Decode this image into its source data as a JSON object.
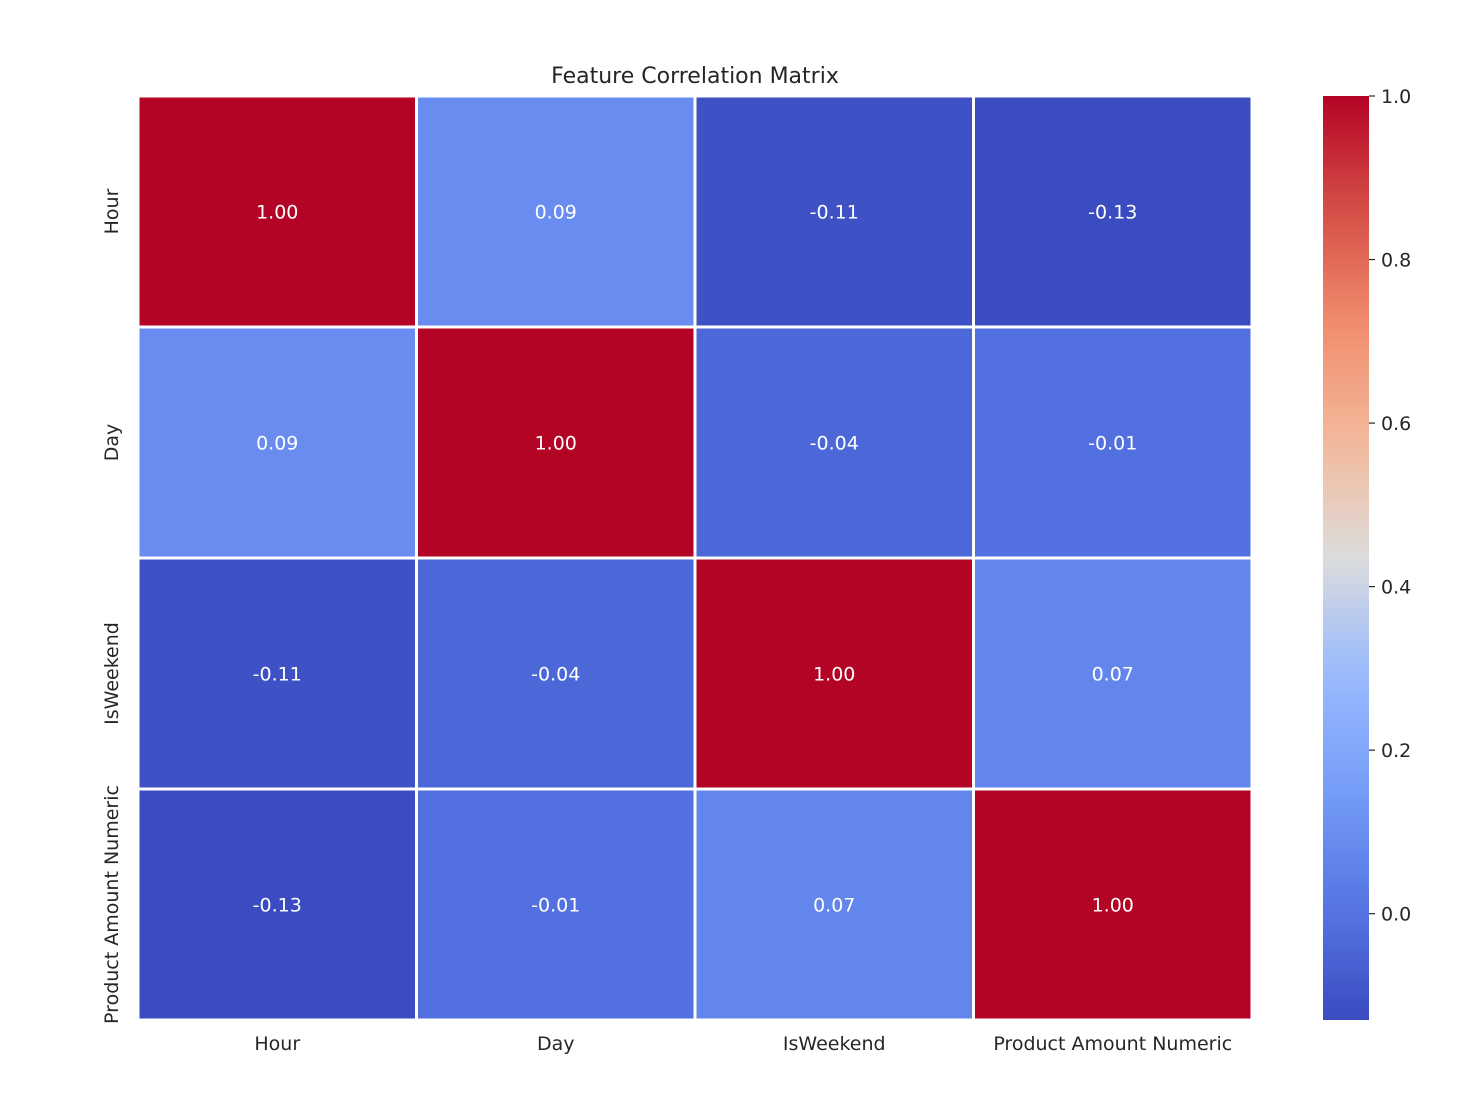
{
  "chart_data": {
    "type": "heatmap",
    "title": "Feature Correlation Matrix",
    "xlabel": "",
    "ylabel": "",
    "row_labels": [
      "Hour",
      "Day",
      "IsWeekend",
      "Product Amount Numeric"
    ],
    "col_labels": [
      "Hour",
      "Day",
      "IsWeekend",
      "Product Amount Numeric"
    ],
    "values": [
      [
        1.0,
        0.09,
        -0.11,
        -0.13
      ],
      [
        0.09,
        1.0,
        -0.04,
        -0.01
      ],
      [
        -0.11,
        -0.04,
        1.0,
        0.07
      ],
      [
        -0.13,
        -0.01,
        0.07,
        1.0
      ]
    ],
    "annotations": [
      [
        "1.00",
        "0.09",
        "-0.11",
        "-0.13"
      ],
      [
        "0.09",
        "1.00",
        "-0.04",
        "-0.01"
      ],
      [
        "-0.11",
        "-0.04",
        "1.00",
        "0.07"
      ],
      [
        "-0.13",
        "-0.01",
        "0.07",
        "1.00"
      ]
    ],
    "colormap": "coolwarm",
    "colorbar": {
      "range": [
        -0.13,
        1.0
      ],
      "ticks": [
        0.0,
        0.2,
        0.4,
        0.6,
        0.8,
        1.0
      ],
      "tick_labels": [
        "0.0",
        "0.2",
        "0.4",
        "0.6",
        "0.8",
        "1.0"
      ],
      "placement": "right"
    },
    "grid": false
  }
}
